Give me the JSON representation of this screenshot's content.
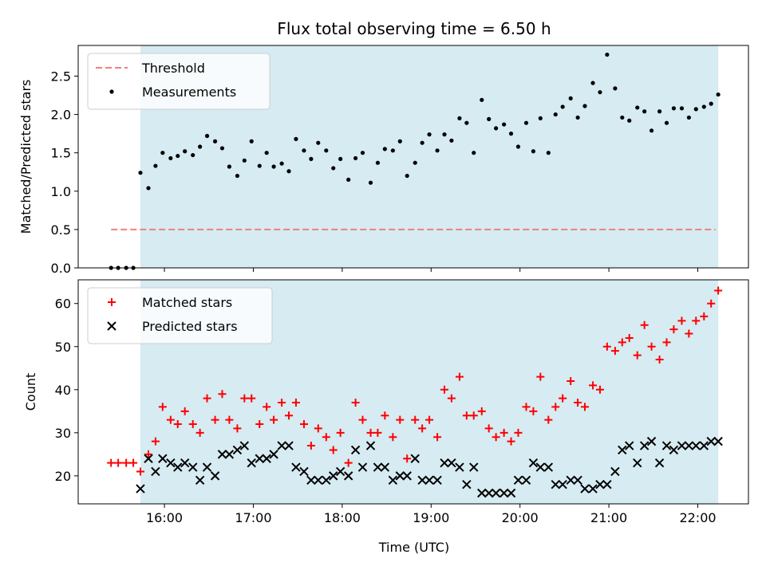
{
  "chart_data": {
    "title": "Flux total observing time = 6.50 h",
    "x_axis": {
      "label": "Time (UTC)",
      "unit": "hour of day (UTC)",
      "range": [
        15.03,
        22.57
      ],
      "ticks": [
        16,
        17,
        18,
        19,
        20,
        21,
        22
      ],
      "tick_labels": [
        "16:00",
        "17:00",
        "18:00",
        "19:00",
        "20:00",
        "21:00",
        "22:00"
      ]
    },
    "shaded_span": {
      "x": [
        15.73,
        22.23
      ],
      "color": "#add8e6"
    },
    "panels": [
      {
        "type": "scatter",
        "ylabel": "Matched/Predicted stars",
        "ylim": [
          0.0,
          2.9
        ],
        "yticks": [
          0.0,
          0.5,
          1.0,
          1.5,
          2.0,
          2.5
        ],
        "ytick_labels": [
          "0.0",
          "0.5",
          "1.0",
          "1.5",
          "2.0",
          "2.5"
        ],
        "legend": {
          "position": "top-left"
        },
        "threshold": {
          "name": "Threshold",
          "value": 0.5,
          "x": [
            15.4,
            22.2
          ],
          "color": "#f08080",
          "style": "dashed"
        },
        "series": [
          {
            "name": "Measurements",
            "marker": "dot",
            "color": "#000000",
            "x": [
              15.4,
              15.48,
              15.57,
              15.65,
              15.73,
              15.82,
              15.9,
              15.98,
              16.07,
              16.15,
              16.23,
              16.32,
              16.4,
              16.48,
              16.57,
              16.65,
              16.73,
              16.82,
              16.9,
              16.98,
              17.07,
              17.15,
              17.23,
              17.32,
              17.4,
              17.48,
              17.57,
              17.65,
              17.73,
              17.82,
              17.9,
              17.98,
              18.07,
              18.15,
              18.23,
              18.32,
              18.4,
              18.48,
              18.57,
              18.65,
              18.73,
              18.82,
              18.9,
              18.98,
              19.07,
              19.15,
              19.23,
              19.32,
              19.4,
              19.48,
              19.57,
              19.65,
              19.73,
              19.82,
              19.9,
              19.98,
              20.07,
              20.15,
              20.23,
              20.32,
              20.4,
              20.48,
              20.57,
              20.65,
              20.73,
              20.82,
              20.9,
              20.98,
              21.07,
              21.15,
              21.23,
              21.32,
              21.4,
              21.48,
              21.57,
              21.65,
              21.73,
              21.82,
              21.9,
              21.98,
              22.07,
              22.15,
              22.23
            ],
            "y": [
              0,
              0,
              0,
              0,
              1.24,
              1.04,
              1.33,
              1.5,
              1.43,
              1.46,
              1.52,
              1.47,
              1.58,
              1.72,
              1.65,
              1.56,
              1.32,
              1.2,
              1.4,
              1.65,
              1.33,
              1.5,
              1.32,
              1.36,
              1.26,
              1.68,
              1.53,
              1.42,
              1.63,
              1.53,
              1.3,
              1.42,
              1.15,
              1.43,
              1.5,
              1.11,
              1.37,
              1.55,
              1.53,
              1.65,
              1.2,
              1.37,
              1.63,
              1.74,
              1.53,
              1.74,
              1.66,
              1.95,
              1.89,
              1.5,
              2.19,
              1.94,
              1.82,
              1.87,
              1.75,
              1.58,
              1.89,
              1.52,
              1.95,
              1.5,
              2.0,
              2.1,
              2.21,
              1.96,
              2.11,
              2.41,
              2.29,
              2.78,
              2.34,
              1.96,
              1.92,
              2.09,
              2.04,
              1.79,
              2.04,
              1.89,
              2.08,
              2.08,
              1.96,
              2.07,
              2.1,
              2.14,
              2.26
            ]
          }
        ]
      },
      {
        "type": "scatter",
        "ylabel": "Count",
        "ylim": [
          13.5,
          65.5
        ],
        "yticks": [
          20,
          30,
          40,
          50,
          60
        ],
        "ytick_labels": [
          "20",
          "30",
          "40",
          "50",
          "60"
        ],
        "legend": {
          "position": "top-left"
        },
        "series": [
          {
            "name": "Matched stars",
            "marker": "plus",
            "color": "#ff0000",
            "x": [
              15.4,
              15.48,
              15.57,
              15.65,
              15.73,
              15.82,
              15.9,
              15.98,
              16.07,
              16.15,
              16.23,
              16.32,
              16.4,
              16.48,
              16.57,
              16.65,
              16.73,
              16.82,
              16.9,
              16.98,
              17.07,
              17.15,
              17.23,
              17.32,
              17.4,
              17.48,
              17.57,
              17.65,
              17.73,
              17.82,
              17.9,
              17.98,
              18.07,
              18.15,
              18.23,
              18.32,
              18.4,
              18.48,
              18.57,
              18.65,
              18.73,
              18.82,
              18.9,
              18.98,
              19.07,
              19.15,
              19.23,
              19.32,
              19.4,
              19.48,
              19.57,
              19.65,
              19.73,
              19.82,
              19.9,
              19.98,
              20.07,
              20.15,
              20.23,
              20.32,
              20.4,
              20.48,
              20.57,
              20.65,
              20.73,
              20.82,
              20.9,
              20.98,
              21.07,
              21.15,
              21.23,
              21.32,
              21.4,
              21.48,
              21.57,
              21.65,
              21.73,
              21.82,
              21.9,
              21.98,
              22.07,
              22.15,
              22.23
            ],
            "y": [
              23,
              23,
              23,
              23,
              21,
              25,
              28,
              36,
              33,
              32,
              35,
              32,
              30,
              38,
              33,
              39,
              33,
              31,
              38,
              38,
              32,
              36,
              33,
              37,
              34,
              37,
              32,
              27,
              31,
              29,
              26,
              30,
              23,
              37,
              33,
              30,
              30,
              34,
              29,
              33,
              24,
              33,
              31,
              33,
              29,
              40,
              38,
              43,
              34,
              34,
              35,
              31,
              29,
              30,
              28,
              30,
              36,
              35,
              43,
              33,
              36,
              38,
              42,
              37,
              36,
              41,
              40,
              50,
              49,
              51,
              52,
              48,
              55,
              50,
              47,
              51,
              54,
              56,
              53,
              56,
              57,
              60,
              63
            ]
          },
          {
            "name": "Predicted stars",
            "marker": "x",
            "color": "#000000",
            "x": [
              15.73,
              15.82,
              15.9,
              15.98,
              16.07,
              16.15,
              16.23,
              16.32,
              16.4,
              16.48,
              16.57,
              16.65,
              16.73,
              16.82,
              16.9,
              16.98,
              17.07,
              17.15,
              17.23,
              17.32,
              17.4,
              17.48,
              17.57,
              17.65,
              17.73,
              17.82,
              17.9,
              17.98,
              18.07,
              18.15,
              18.23,
              18.32,
              18.4,
              18.48,
              18.57,
              18.65,
              18.73,
              18.82,
              18.9,
              18.98,
              19.07,
              19.15,
              19.23,
              19.32,
              19.4,
              19.48,
              19.57,
              19.65,
              19.73,
              19.82,
              19.9,
              19.98,
              20.07,
              20.15,
              20.23,
              20.32,
              20.4,
              20.48,
              20.57,
              20.65,
              20.73,
              20.82,
              20.9,
              20.98,
              21.07,
              21.15,
              21.23,
              21.32,
              21.4,
              21.48,
              21.57,
              21.65,
              21.73,
              21.82,
              21.9,
              21.98,
              22.07,
              22.15,
              22.23
            ],
            "y": [
              17,
              24,
              21,
              24,
              23,
              22,
              23,
              22,
              19,
              22,
              20,
              25,
              25,
              26,
              27,
              23,
              24,
              24,
              25,
              27,
              27,
              22,
              21,
              19,
              19,
              19,
              20,
              21,
              20,
              26,
              22,
              27,
              22,
              22,
              19,
              20,
              20,
              24,
              19,
              19,
              19,
              23,
              23,
              22,
              18,
              22,
              16,
              16,
              16,
              16,
              16,
              19,
              19,
              23,
              22,
              22,
              18,
              18,
              19,
              19,
              17,
              17,
              18,
              18,
              21,
              26,
              27,
              23,
              27,
              28,
              23,
              27,
              26,
              27,
              27,
              27,
              27,
              28,
              28
            ]
          }
        ]
      }
    ]
  }
}
